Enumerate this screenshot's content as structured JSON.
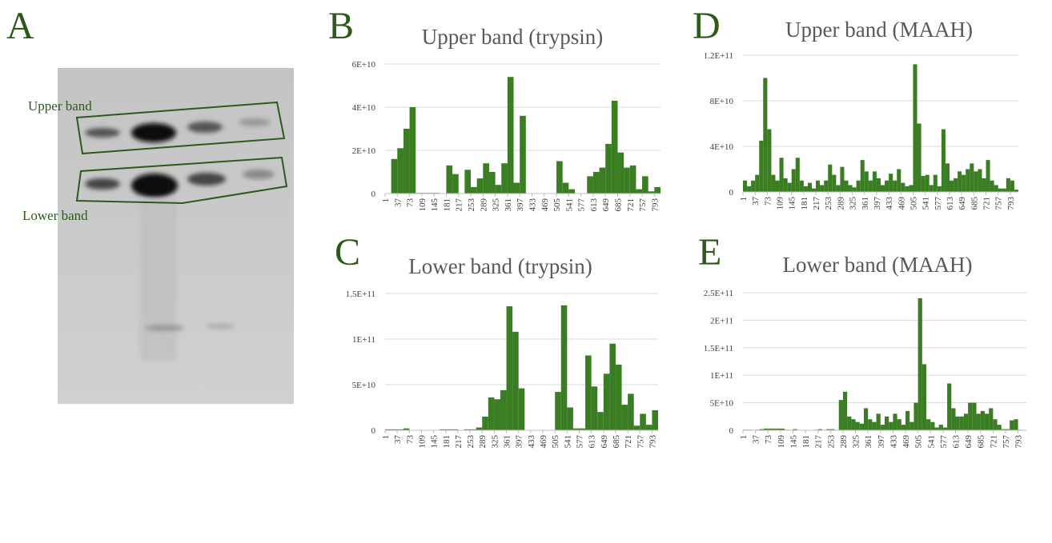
{
  "figure": {
    "panel": "A",
    "annotations": [
      "Upper band",
      "Lower band"
    ]
  },
  "chart_data": [
    {
      "type": "bar",
      "panel": "B",
      "title": "Upper band (trypsin)",
      "color": "#3a7d22",
      "grid": true,
      "xlim": [
        1,
        811
      ],
      "ylim": [
        0,
        60000000000
      ],
      "xticks": [
        1,
        37,
        73,
        109,
        145,
        181,
        217,
        253,
        289,
        325,
        361,
        397,
        433,
        469,
        505,
        541,
        577,
        613,
        649,
        685,
        721,
        757,
        793
      ],
      "yticks": [
        0,
        {
          "value": 20000000000,
          "label": "2E+10"
        },
        {
          "value": 40000000000,
          "label": "4E+10"
        },
        {
          "value": 60000000000,
          "label": "6E+10"
        }
      ],
      "x": [
        1,
        19,
        37,
        55,
        73,
        91,
        109,
        127,
        145,
        163,
        181,
        199,
        217,
        235,
        253,
        271,
        289,
        307,
        325,
        343,
        361,
        379,
        397,
        415,
        433,
        451,
        469,
        487,
        505,
        523,
        541,
        559,
        577,
        595,
        613,
        631,
        649,
        667,
        685,
        703,
        721,
        739,
        757,
        775,
        793
      ],
      "values": [
        0,
        16000000000.0,
        21000000000.0,
        30000000000.0,
        40000000000.0,
        300000000.0,
        300000000.0,
        300000000.0,
        300000000.0,
        0,
        13000000000.0,
        9000000000.0,
        0,
        11000000000.0,
        3000000000.0,
        7000000000.0,
        14000000000.0,
        10000000000.0,
        4000000000.0,
        14000000000.0,
        54000000000.0,
        5000000000.0,
        36000000000.0,
        0,
        0,
        0,
        0,
        0,
        15000000000.0,
        5000000000.0,
        2000000000.0,
        0,
        0,
        8000000000.0,
        10000000000.0,
        12000000000.0,
        23000000000.0,
        43000000000.0,
        19000000000.0,
        12000000000.0,
        13000000000.0,
        2000000000.0,
        8000000000.0,
        1000000000.0,
        3000000000.0
      ]
    },
    {
      "type": "bar",
      "panel": "C",
      "title": "Lower band (trypsin)",
      "color": "#3a7d22",
      "grid": true,
      "xlim": [
        1,
        811
      ],
      "ylim": [
        0,
        150000000000
      ],
      "xticks": [
        1,
        37,
        73,
        109,
        145,
        181,
        217,
        253,
        289,
        325,
        361,
        397,
        433,
        469,
        505,
        541,
        577,
        613,
        649,
        685,
        721,
        757,
        793
      ],
      "yticks": [
        0,
        {
          "value": 50000000000,
          "label": "5E+10"
        },
        {
          "value": 100000000000,
          "label": "1E+11"
        },
        {
          "value": 150000000000,
          "label": "1.5E+11"
        }
      ],
      "x": [
        1,
        19,
        37,
        55,
        73,
        91,
        109,
        127,
        145,
        163,
        181,
        199,
        217,
        235,
        253,
        271,
        289,
        307,
        325,
        343,
        361,
        379,
        397,
        415,
        433,
        451,
        469,
        487,
        505,
        523,
        541,
        559,
        577,
        595,
        613,
        631,
        649,
        667,
        685,
        703,
        721,
        739,
        757,
        775,
        793
      ],
      "values": [
        1000000000.0,
        1000000000.0,
        1000000000.0,
        2000000000.0,
        0,
        0,
        0,
        0,
        0,
        1000000000.0,
        1000000000.0,
        1000000000.0,
        0,
        1000000000.0,
        1000000000.0,
        3000000000.0,
        15000000000.0,
        36000000000.0,
        34000000000.0,
        44000000000.0,
        136000000000.0,
        108000000000.0,
        46000000000.0,
        0,
        0,
        0,
        0,
        0,
        42000000000.0,
        137000000000.0,
        25000000000.0,
        2000000000.0,
        2000000000.0,
        82000000000.0,
        48000000000.0,
        20000000000.0,
        62000000000.0,
        95000000000.0,
        72000000000.0,
        28000000000.0,
        40000000000.0,
        5000000000.0,
        18000000000.0,
        6000000000.0,
        22000000000.0
      ]
    },
    {
      "type": "bar",
      "panel": "D",
      "title": "Upper band (MAAH)",
      "color": "#3a7d22",
      "grid": true,
      "xlim": [
        1,
        817
      ],
      "ylim": [
        0,
        120000000000
      ],
      "xticks": [
        1,
        37,
        73,
        109,
        145,
        181,
        217,
        253,
        289,
        325,
        361,
        397,
        433,
        469,
        505,
        541,
        577,
        613,
        649,
        685,
        721,
        757,
        793
      ],
      "yticks": [
        0,
        {
          "value": 40000000000,
          "label": "4E+10"
        },
        {
          "value": 80000000000,
          "label": "8E+10"
        },
        {
          "value": 120000000000,
          "label": "1.2E+11"
        }
      ],
      "x": [
        1,
        13,
        25,
        37,
        49,
        61,
        73,
        85,
        97,
        109,
        121,
        133,
        145,
        157,
        169,
        181,
        193,
        205,
        217,
        229,
        241,
        253,
        265,
        277,
        289,
        301,
        313,
        325,
        337,
        349,
        361,
        373,
        385,
        397,
        409,
        421,
        433,
        445,
        457,
        469,
        481,
        493,
        505,
        517,
        529,
        541,
        553,
        565,
        577,
        589,
        601,
        613,
        625,
        637,
        649,
        661,
        673,
        685,
        697,
        709,
        721,
        733,
        745,
        757,
        769,
        781,
        793,
        805
      ],
      "values": [
        10000000000.0,
        5000000000.0,
        10000000000.0,
        15000000000.0,
        45000000000.0,
        100000000000.0,
        55000000000.0,
        15000000000.0,
        10000000000.0,
        30000000000.0,
        12000000000.0,
        8000000000.0,
        20000000000.0,
        30000000000.0,
        10000000000.0,
        5000000000.0,
        8000000000.0,
        3000000000.0,
        10000000000.0,
        6000000000.0,
        10000000000.0,
        24000000000.0,
        15000000000.0,
        6000000000.0,
        22000000000.0,
        10000000000.0,
        6000000000.0,
        4000000000.0,
        10000000000.0,
        28000000000.0,
        18000000000.0,
        10000000000.0,
        18000000000.0,
        12000000000.0,
        6000000000.0,
        10000000000.0,
        16000000000.0,
        10000000000.0,
        20000000000.0,
        8000000000.0,
        5000000000.0,
        6000000000.0,
        112000000000.0,
        60000000000.0,
        14000000000.0,
        15000000000.0,
        6000000000.0,
        15000000000.0,
        5000000000.0,
        55000000000.0,
        25000000000.0,
        10000000000.0,
        12000000000.0,
        18000000000.0,
        15000000000.0,
        20000000000.0,
        25000000000.0,
        18000000000.0,
        20000000000.0,
        12000000000.0,
        28000000000.0,
        10000000000.0,
        6000000000.0,
        3000000000.0,
        3000000000.0,
        12000000000.0,
        10000000000.0,
        2000000000.0
      ]
    },
    {
      "type": "bar",
      "panel": "E",
      "title": "Lower band (MAAH)",
      "color": "#3a7d22",
      "grid": true,
      "xlim": [
        1,
        817
      ],
      "ylim": [
        0,
        250000000000
      ],
      "xticks": [
        1,
        37,
        73,
        109,
        145,
        181,
        217,
        253,
        289,
        325,
        361,
        397,
        433,
        469,
        505,
        541,
        577,
        613,
        649,
        685,
        721,
        757,
        793
      ],
      "yticks": [
        0,
        {
          "value": 50000000000,
          "label": "5E+10"
        },
        {
          "value": 100000000000,
          "label": "1E+11"
        },
        {
          "value": 150000000000,
          "label": "1.5E+11"
        },
        {
          "value": 200000000000,
          "label": "2E+11"
        },
        {
          "value": 250000000000,
          "label": "2.5E+11"
        }
      ],
      "x": [
        1,
        13,
        25,
        37,
        49,
        61,
        73,
        85,
        97,
        109,
        121,
        133,
        145,
        157,
        169,
        181,
        193,
        205,
        217,
        229,
        241,
        253,
        265,
        277,
        289,
        301,
        313,
        325,
        337,
        349,
        361,
        373,
        385,
        397,
        409,
        421,
        433,
        445,
        457,
        469,
        481,
        493,
        505,
        517,
        529,
        541,
        553,
        565,
        577,
        589,
        601,
        613,
        625,
        637,
        649,
        661,
        673,
        685,
        697,
        709,
        721,
        733,
        745,
        757,
        769,
        781,
        793,
        805
      ],
      "values": [
        1000000000.0,
        1000000000.0,
        0,
        1000000000.0,
        2000000000.0,
        3000000000.0,
        3000000000.0,
        3000000000.0,
        3000000000.0,
        3000000000.0,
        1000000000.0,
        0,
        2000000000.0,
        0,
        0,
        0,
        0,
        1000000000.0,
        2000000000.0,
        0,
        2000000000.0,
        2000000000.0,
        0,
        55000000000.0,
        70000000000.0,
        25000000000.0,
        20000000000.0,
        15000000000.0,
        12000000000.0,
        40000000000.0,
        20000000000.0,
        15000000000.0,
        30000000000.0,
        10000000000.0,
        25000000000.0,
        15000000000.0,
        30000000000.0,
        20000000000.0,
        10000000000.0,
        35000000000.0,
        15000000000.0,
        50000000000.0,
        240000000000.0,
        120000000000.0,
        20000000000.0,
        15000000000.0,
        5000000000.0,
        10000000000.0,
        5000000000.0,
        85000000000.0,
        40000000000.0,
        25000000000.0,
        25000000000.0,
        30000000000.0,
        50000000000.0,
        50000000000.0,
        30000000000.0,
        35000000000.0,
        30000000000.0,
        40000000000.0,
        20000000000.0,
        10000000000.0,
        2000000000.0,
        2000000000.0,
        18000000000.0,
        20000000000.0,
        1000000000.0,
        0
      ]
    }
  ]
}
